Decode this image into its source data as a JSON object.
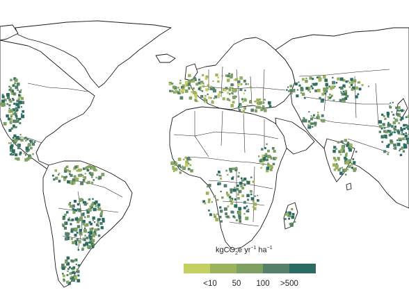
{
  "legend": {
    "title_parts": {
      "a": "kgCO",
      "sub": "2",
      "b": "e yr",
      "sup1": "−1",
      "c": " ha",
      "sup2": "−1"
    },
    "colors": [
      "#c4cf64",
      "#9cb35e",
      "#7fa063",
      "#56806a",
      "#2c6b62"
    ],
    "ticks": [
      "<10",
      "50",
      "100",
      ">500"
    ]
  },
  "map": {
    "land_color": "#ffffff",
    "outline_color": "#1a1a1a",
    "emission_classes": [
      "<10",
      "50",
      "100",
      ">500"
    ]
  }
}
